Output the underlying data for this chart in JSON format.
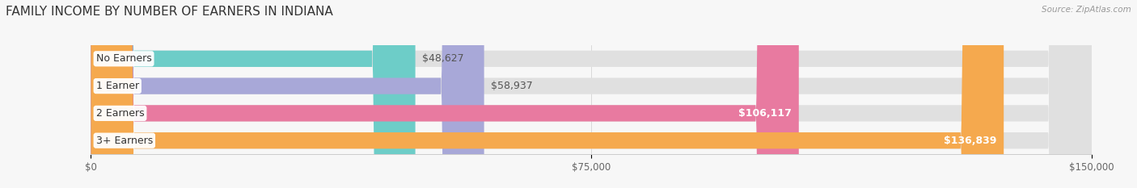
{
  "title": "FAMILY INCOME BY NUMBER OF EARNERS IN INDIANA",
  "source": "Source: ZipAtlas.com",
  "categories": [
    "No Earners",
    "1 Earner",
    "2 Earners",
    "3+ Earners"
  ],
  "values": [
    48627,
    58937,
    106117,
    136839
  ],
  "bar_colors": [
    "#6dcdc8",
    "#a8a8d8",
    "#e87aa0",
    "#f5a94e"
  ],
  "bar_bg_color": "#e0e0e0",
  "max_value": 150000,
  "xticks": [
    0,
    75000,
    150000
  ],
  "xtick_labels": [
    "$0",
    "$75,000",
    "$150,000"
  ],
  "background_color": "#f7f7f7",
  "label_fontsize": 9,
  "value_fontsize": 9,
  "title_fontsize": 11,
  "source_fontsize": 7.5
}
